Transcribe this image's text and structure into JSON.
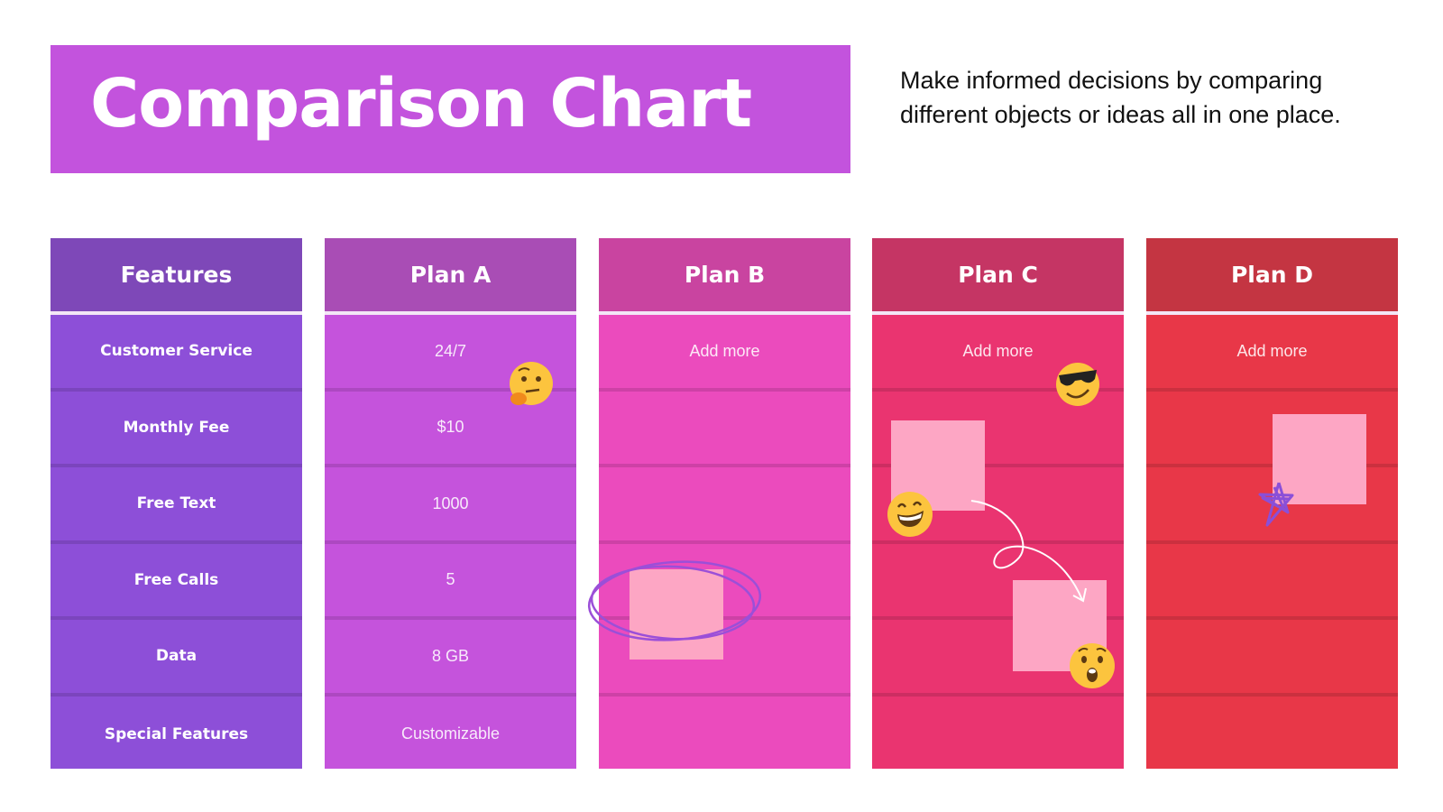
{
  "header": {
    "title": "Comparison Chart",
    "subtitle": "Make informed decisions by comparing different objects or ideas all in one place."
  },
  "table": {
    "columns": [
      {
        "label": "Features",
        "header_color": "#7e48b8",
        "body_color": "#8d4fd8",
        "cells": [
          "Customer Service",
          "Monthly Fee",
          "Free Text",
          "Free Calls",
          "Data",
          "Special Features"
        ]
      },
      {
        "label": "Plan A",
        "header_color": "#a94db5",
        "body_color": "#c553dc",
        "cells": [
          "24/7",
          "$10",
          "1000",
          "5",
          "8 GB",
          "Customizable"
        ]
      },
      {
        "label": "Plan B",
        "header_color": "#c944a0",
        "body_color": "#eb4bbd",
        "cells": [
          "Add more",
          "",
          "",
          "",
          "",
          ""
        ]
      },
      {
        "label": "Plan C",
        "header_color": "#c53564",
        "body_color": "#ea3470",
        "cells": [
          "Add more",
          "",
          "",
          "",
          "",
          ""
        ]
      },
      {
        "label": "Plan D",
        "header_color": "#c43542",
        "body_color": "#e83748",
        "cells": [
          "Add more",
          "",
          "",
          "",
          "",
          ""
        ]
      }
    ]
  },
  "decorations": {
    "sticky_note_color": "#fda6c4",
    "emojis": [
      "thinking-face",
      "smiling-face-with-sunglasses",
      "grinning-face",
      "astonished-face"
    ],
    "doodles": [
      "purple-ellipse",
      "white-curly-arrow",
      "purple-star"
    ]
  }
}
